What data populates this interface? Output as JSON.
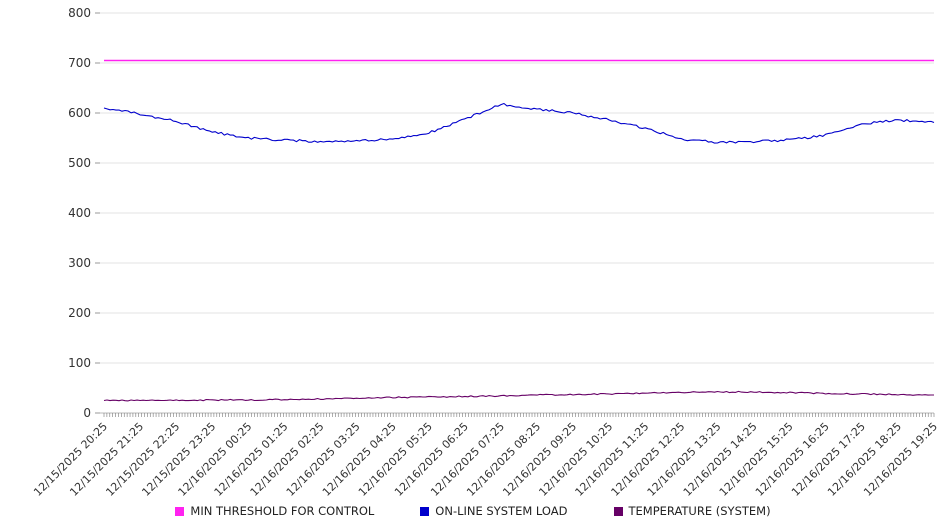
{
  "chart_data": {
    "type": "line",
    "title": "",
    "xlabel": "",
    "ylabel": "",
    "ylim": [
      0,
      800
    ],
    "yticks": [
      0,
      100,
      200,
      300,
      400,
      500,
      600,
      700,
      800
    ],
    "grid": true,
    "legend_position": "bottom",
    "categories": [
      "12/15/2025 20:25",
      "12/15/2025 21:25",
      "12/15/2025 22:25",
      "12/15/2025 23:25",
      "12/16/2025 00:25",
      "12/16/2025 01:25",
      "12/16/2025 02:25",
      "12/16/2025 03:25",
      "12/16/2025 04:25",
      "12/16/2025 05:25",
      "12/16/2025 06:25",
      "12/16/2025 07:25",
      "12/16/2025 08:25",
      "12/16/2025 09:25",
      "12/16/2025 10:25",
      "12/16/2025 11:25",
      "12/16/2025 12:25",
      "12/16/2025 13:25",
      "12/16/2025 14:25",
      "12/16/2025 15:25",
      "12/16/2025 16:25",
      "12/16/2025 17:25",
      "12/16/2025 18:25",
      "12/16/2025 19:25"
    ],
    "series": [
      {
        "name": "MIN THRESHOLD FOR CONTROL",
        "color": "#ff22f0",
        "values": [
          705,
          705,
          705,
          705,
          705,
          705,
          705,
          705,
          705,
          705,
          705,
          705,
          705,
          705,
          705,
          705,
          705,
          705,
          705,
          705,
          705,
          705,
          705,
          705
        ]
      },
      {
        "name": "ON-LINE SYSTEM LOAD",
        "color": "#0000cc",
        "values": [
          610,
          598,
          583,
          562,
          550,
          546,
          543,
          545,
          548,
          560,
          588,
          618,
          608,
          600,
          586,
          570,
          548,
          541,
          543,
          546,
          556,
          578,
          586,
          581
        ]
      },
      {
        "name": "TEMPERATURE (SYSTEM)",
        "color": "#660066",
        "values": [
          25,
          25,
          25,
          26,
          26,
          27,
          28,
          30,
          31,
          32,
          33,
          34,
          36,
          37,
          38,
          40,
          41,
          42,
          42,
          41,
          39,
          38,
          37,
          36
        ]
      }
    ]
  }
}
